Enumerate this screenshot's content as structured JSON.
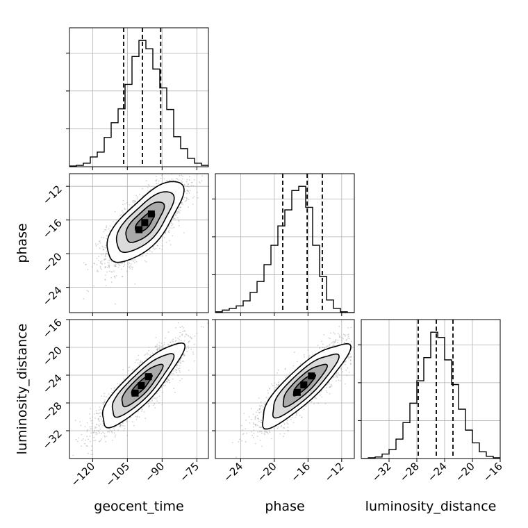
{
  "chart_data": {
    "type": "corner",
    "parameters": [
      "geocent_time",
      "phase",
      "luminosity_distance"
    ],
    "ranges": {
      "geocent_time": [
        -130,
        -70
      ],
      "phase": [
        -27,
        -10.5
      ],
      "luminosity_distance": [
        -36,
        -16
      ]
    },
    "ticks": {
      "geocent_time": [
        -120,
        -105,
        -90,
        -75
      ],
      "phase": [
        -24,
        -20,
        -16,
        -12
      ],
      "luminosity_distance": [
        -32,
        -28,
        -24,
        -20,
        -16
      ]
    },
    "tick_labels": {
      "geocent_time": [
        "−120",
        "−105",
        "−90",
        "−75"
      ],
      "phase": [
        "−24",
        "−20",
        "−16",
        "−12"
      ],
      "luminosity_distance": [
        "−32",
        "−28",
        "−24",
        "−20",
        "−16"
      ]
    },
    "quantiles": {
      "geocent_time": [
        -106.6,
        -98.5,
        -90.6
      ],
      "phase": [
        -19.0,
        -16.1,
        -14.3
      ],
      "luminosity_distance": [
        -27.8,
        -25.2,
        -22.8
      ]
    },
    "histograms": {
      "geocent_time": {
        "edges": [
          -130,
          -127,
          -124,
          -121,
          -118,
          -115,
          -112,
          -109,
          -106,
          -103,
          -100,
          -97,
          -94,
          -91,
          -88,
          -85,
          -82,
          -79,
          -76,
          -73,
          -70
        ],
        "counts": [
          1,
          2,
          5,
          14,
          21,
          42,
          63,
          83,
          118,
          158,
          181,
          169,
          140,
          113,
          82,
          43,
          26,
          12,
          5,
          2
        ]
      },
      "phase": {
        "edges": [
          -27,
          -26.175,
          -25.35,
          -24.525,
          -23.7,
          -22.875,
          -22.05,
          -21.225,
          -20.4,
          -19.575,
          -18.75,
          -17.925,
          -17.1,
          -16.275,
          -15.45,
          -14.625,
          -13.8,
          -12.975,
          -12.15,
          -11.325,
          -10.5
        ],
        "counts": [
          1,
          3,
          5,
          8,
          14,
          24,
          37,
          57,
          80,
          103,
          122,
          145,
          150,
          125,
          80,
          43,
          15,
          5,
          1,
          0
        ]
      },
      "luminosity_distance": {
        "edges": [
          -36,
          -35,
          -34,
          -33,
          -32,
          -31,
          -30,
          -29,
          -28,
          -27,
          -26,
          -25,
          -24,
          -23,
          -22,
          -21,
          -20,
          -19,
          -18,
          -17,
          -16
        ],
        "counts": [
          0,
          1,
          2,
          6,
          12,
          26,
          48,
          74,
          104,
          135,
          169,
          162,
          132,
          99,
          66,
          38,
          21,
          9,
          3,
          1
        ]
      }
    },
    "joint": [
      {
        "x": "geocent_time",
        "y": "phase",
        "mean": [
          -97.5,
          -16.3
        ],
        "sd": [
          8.2,
          2.4
        ],
        "rho": 0.72
      },
      {
        "x": "geocent_time",
        "y": "luminosity_distance",
        "mean": [
          -99,
          -25.5
        ],
        "sd": [
          8.8,
          3.0
        ],
        "rho": 0.86
      },
      {
        "x": "phase",
        "y": "luminosity_distance",
        "mean": [
          -16.5,
          -25.4
        ],
        "sd": [
          2.6,
          3.0
        ],
        "rho": 0.86
      }
    ]
  }
}
